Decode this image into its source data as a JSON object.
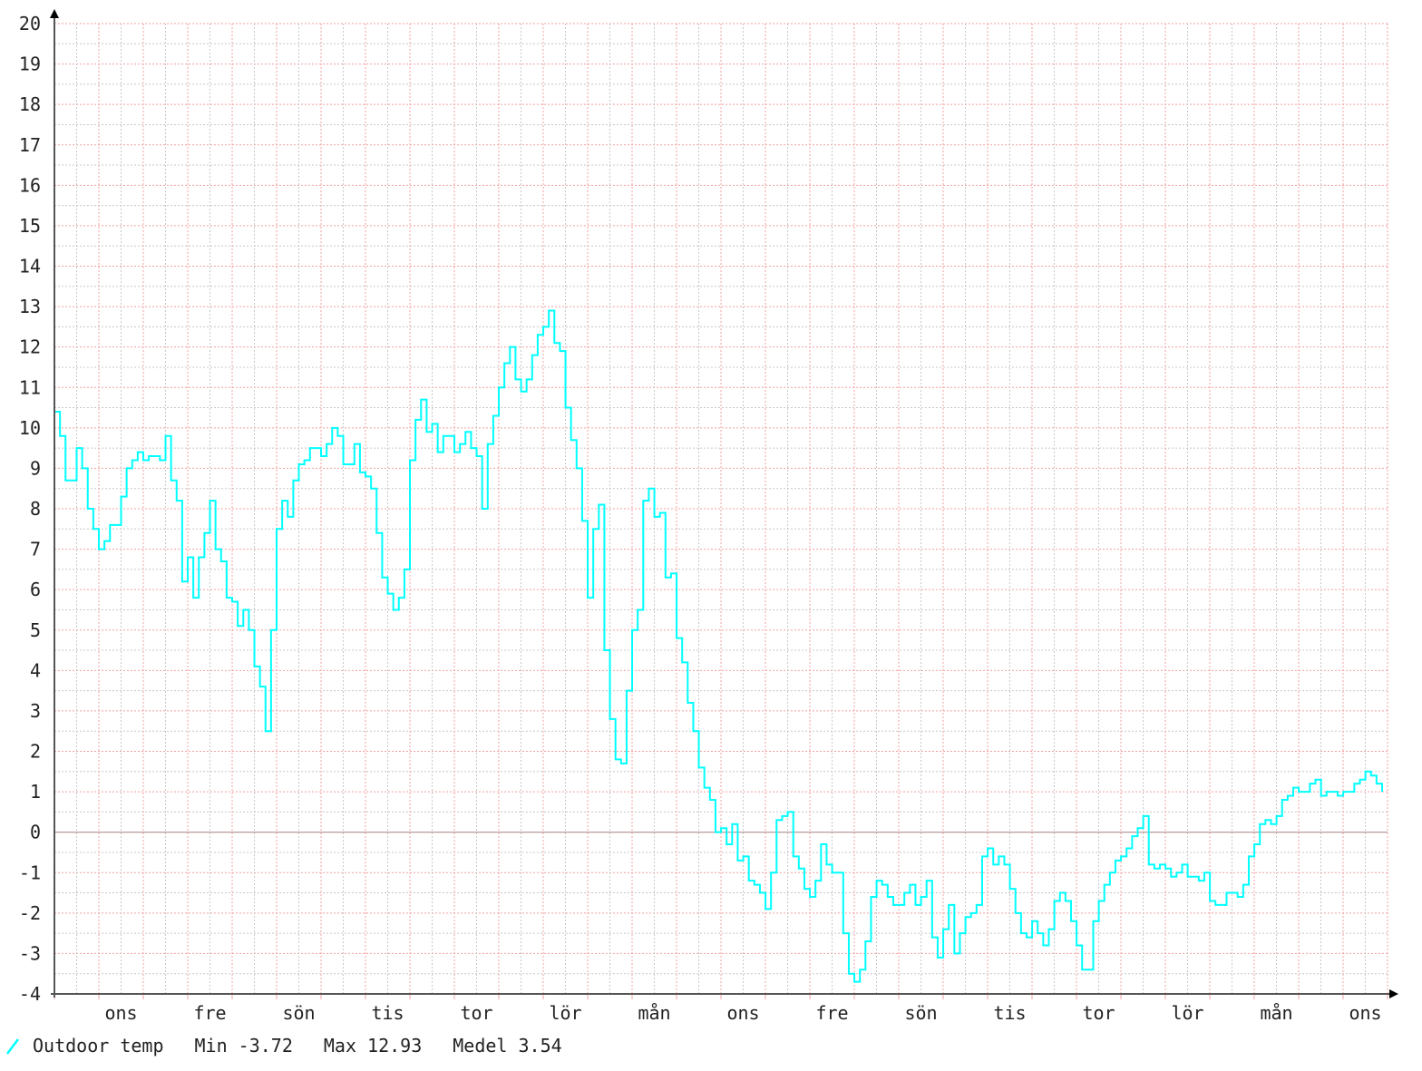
{
  "chart_data": {
    "type": "line",
    "title": "",
    "xlabel": "",
    "ylabel": "",
    "ylim": [
      -4,
      20
    ],
    "yticks": [
      20,
      19,
      18,
      17,
      16,
      15,
      14,
      13,
      12,
      11,
      10,
      9,
      8,
      7,
      6,
      5,
      4,
      3,
      2,
      1,
      0,
      -1,
      -2,
      -3,
      -4
    ],
    "xtick_labels": [
      "ons",
      "fre",
      "sön",
      "tis",
      "tor",
      "lör",
      "mån",
      "ons",
      "fre",
      "sön",
      "tis",
      "tor",
      "lör",
      "mån",
      "ons"
    ],
    "grid": true,
    "legend_placement": "bottom-left",
    "colors": {
      "series": "#00ffff",
      "grid_major": "#f4a0a0",
      "grid_minor": "#c8c8c8",
      "axis": "#555555",
      "zero_line": "#b09090"
    },
    "series": [
      {
        "name": "Outdoor temp",
        "values": [
          10.4,
          9.8,
          8.7,
          8.7,
          9.5,
          9.0,
          8.0,
          7.5,
          7.0,
          7.2,
          7.6,
          7.6,
          8.3,
          9.0,
          9.2,
          9.4,
          9.2,
          9.3,
          9.3,
          9.2,
          9.8,
          8.7,
          8.2,
          6.2,
          6.8,
          5.8,
          6.8,
          7.4,
          8.2,
          7.0,
          6.7,
          5.8,
          5.7,
          5.1,
          5.5,
          5.0,
          4.1,
          3.6,
          2.5,
          5.0,
          7.5,
          8.2,
          7.8,
          8.7,
          9.1,
          9.2,
          9.5,
          9.5,
          9.3,
          9.6,
          10.0,
          9.8,
          9.1,
          9.1,
          9.6,
          8.9,
          8.8,
          8.5,
          7.4,
          6.3,
          5.9,
          5.5,
          5.8,
          6.5,
          9.2,
          10.2,
          10.7,
          9.9,
          10.1,
          9.4,
          9.8,
          9.8,
          9.4,
          9.6,
          9.9,
          9.5,
          9.3,
          8.0,
          9.6,
          10.3,
          11.0,
          11.6,
          12.0,
          11.2,
          10.9,
          11.2,
          11.8,
          12.3,
          12.5,
          12.9,
          12.1,
          11.9,
          10.5,
          9.7,
          9.0,
          7.7,
          5.8,
          7.5,
          8.1,
          4.5,
          2.8,
          1.8,
          1.7,
          3.5,
          5.0,
          5.5,
          8.2,
          8.5,
          7.8,
          7.9,
          6.3,
          6.4,
          4.8,
          4.2,
          3.2,
          2.5,
          1.6,
          1.1,
          0.8,
          0.0,
          0.1,
          -0.3,
          0.2,
          -0.7,
          -0.6,
          -1.2,
          -1.3,
          -1.5,
          -1.9,
          -1.0,
          0.3,
          0.4,
          0.5,
          -0.6,
          -0.9,
          -1.4,
          -1.6,
          -1.2,
          -0.3,
          -0.8,
          -1.0,
          -1.0,
          -2.5,
          -3.5,
          -3.7,
          -3.4,
          -2.7,
          -1.6,
          -1.2,
          -1.3,
          -1.6,
          -1.8,
          -1.8,
          -1.5,
          -1.3,
          -1.8,
          -1.6,
          -1.2,
          -2.6,
          -3.1,
          -2.4,
          -1.8,
          -3.0,
          -2.5,
          -2.1,
          -2.0,
          -1.8,
          -0.6,
          -0.4,
          -0.8,
          -0.6,
          -0.8,
          -1.4,
          -2.0,
          -2.5,
          -2.6,
          -2.2,
          -2.5,
          -2.8,
          -2.4,
          -1.7,
          -1.5,
          -1.7,
          -2.2,
          -2.8,
          -3.4,
          -3.4,
          -2.2,
          -1.7,
          -1.3,
          -1.0,
          -0.7,
          -0.6,
          -0.4,
          -0.1,
          0.1,
          0.4,
          -0.8,
          -0.9,
          -0.8,
          -0.9,
          -1.1,
          -1.0,
          -0.8,
          -1.1,
          -1.1,
          -1.2,
          -1.0,
          -1.7,
          -1.8,
          -1.8,
          -1.5,
          -1.5,
          -1.6,
          -1.3,
          -0.6,
          -0.3,
          0.2,
          0.3,
          0.2,
          0.4,
          0.8,
          0.9,
          1.1,
          1.0,
          1.0,
          1.2,
          1.3,
          0.9,
          1.0,
          1.0,
          0.9,
          1.0,
          1.0,
          1.2,
          1.3,
          1.5,
          1.4,
          1.2,
          1.0
        ]
      }
    ]
  },
  "legend": {
    "icon": "line-slash-icon",
    "series_label": "Outdoor temp",
    "min": "Min -3.72",
    "max": "Max 12.93",
    "mean": "Medel 3.54"
  }
}
